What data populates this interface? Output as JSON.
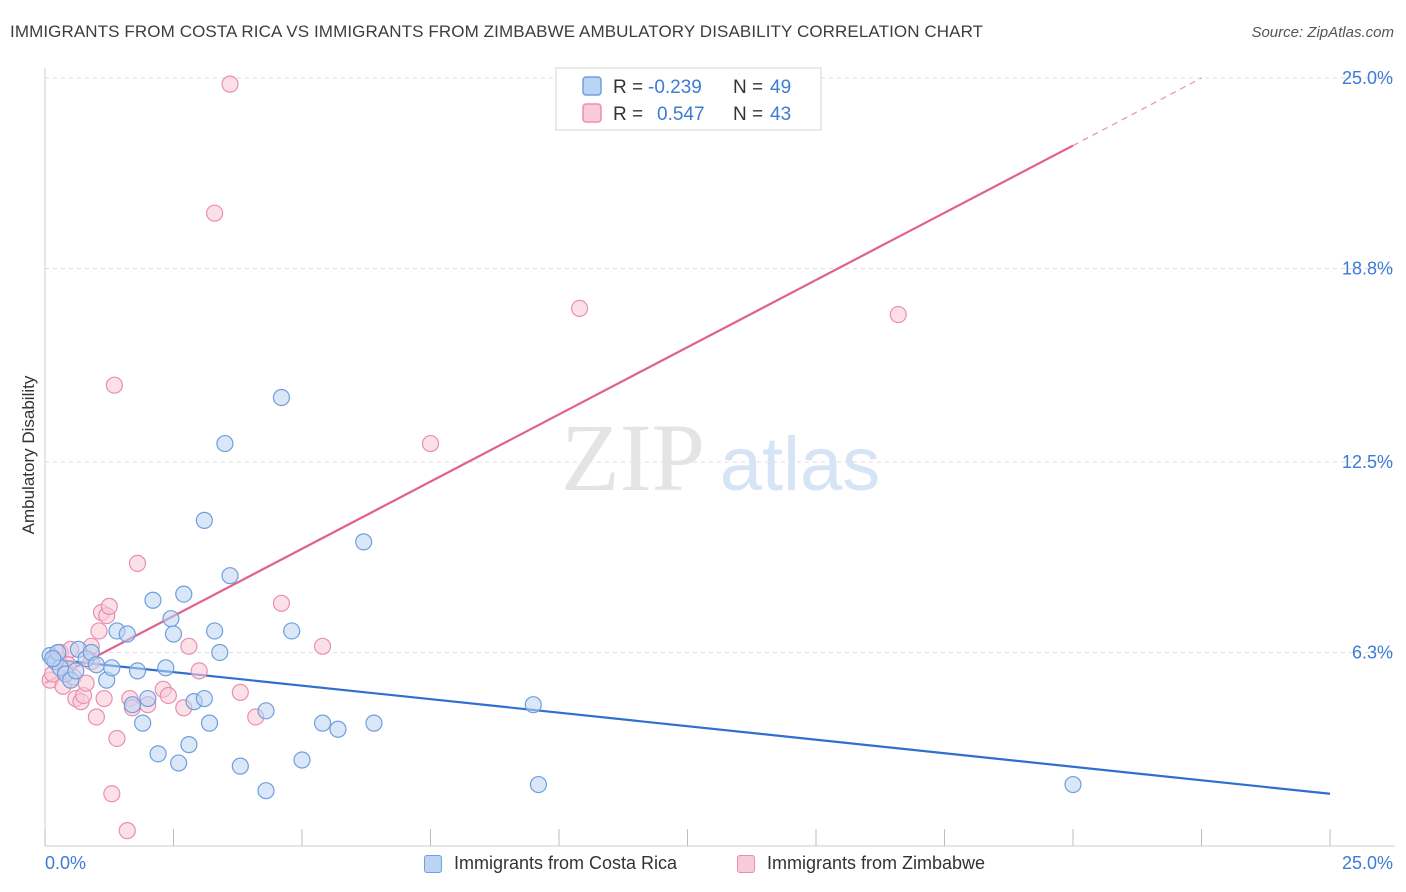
{
  "header": {
    "title": "IMMIGRANTS FROM COSTA RICA VS IMMIGRANTS FROM ZIMBABWE AMBULATORY DISABILITY CORRELATION CHART",
    "source": "Source: ZipAtlas.com"
  },
  "watermark": {
    "zip": "ZIP",
    "atlas": "atlas"
  },
  "colors": {
    "blue_fill": "#bcd4f4",
    "blue_stroke": "#6f9fdc",
    "blue_line": "#2f6fd0",
    "pink_fill": "#f9cbd9",
    "pink_stroke": "#ea8fad",
    "pink_line": "#e0618c",
    "axis_text": "#3d7bd4",
    "grid": "#dddddd"
  },
  "legend_stats": [
    {
      "r_label": "R =",
      "r_value": "-0.239",
      "n_label": "N =",
      "n_value": "49"
    },
    {
      "r_label": "R =",
      "r_value": "0.547",
      "n_label": "N =",
      "n_value": "43"
    }
  ],
  "chart_data": {
    "type": "scatter",
    "title": "IMMIGRANTS FROM COSTA RICA VS IMMIGRANTS FROM ZIMBABWE AMBULATORY DISABILITY CORRELATION CHART",
    "xlabel": "",
    "ylabel": "Ambulatory Disability",
    "xlim": [
      0,
      25
    ],
    "ylim": [
      0,
      25
    ],
    "x_tick_labels": [
      "0.0%",
      "25.0%"
    ],
    "y_ticks": [
      6.3,
      12.5,
      18.8,
      25.0
    ],
    "y_tick_labels": [
      "6.3%",
      "12.5%",
      "18.8%",
      "25.0%"
    ],
    "grid": true,
    "legend_position": "top-center and bottom",
    "series": [
      {
        "name": "Immigrants from Costa Rica",
        "color": "#6f9fdc",
        "trend": {
          "x": [
            0,
            25
          ],
          "y": [
            6.1,
            1.7
          ]
        },
        "points": [
          [
            0.1,
            6.2
          ],
          [
            0.2,
            6.0
          ],
          [
            0.25,
            6.3
          ],
          [
            0.3,
            5.8
          ],
          [
            0.4,
            5.6
          ],
          [
            0.5,
            5.4
          ],
          [
            0.6,
            5.7
          ],
          [
            0.65,
            6.4
          ],
          [
            0.8,
            6.1
          ],
          [
            0.9,
            6.3
          ],
          [
            1.0,
            5.9
          ],
          [
            1.2,
            5.4
          ],
          [
            1.3,
            5.8
          ],
          [
            1.4,
            7.0
          ],
          [
            1.6,
            6.9
          ],
          [
            1.7,
            4.6
          ],
          [
            1.8,
            5.7
          ],
          [
            1.9,
            4.0
          ],
          [
            2.0,
            4.8
          ],
          [
            2.1,
            8.0
          ],
          [
            2.2,
            3.0
          ],
          [
            2.35,
            5.8
          ],
          [
            2.45,
            7.4
          ],
          [
            2.5,
            6.9
          ],
          [
            2.6,
            2.7
          ],
          [
            2.7,
            8.2
          ],
          [
            2.8,
            3.3
          ],
          [
            2.9,
            4.7
          ],
          [
            3.1,
            4.8
          ],
          [
            3.1,
            10.6
          ],
          [
            3.2,
            4.0
          ],
          [
            3.3,
            7.0
          ],
          [
            3.4,
            6.3
          ],
          [
            3.5,
            13.1
          ],
          [
            3.6,
            8.8
          ],
          [
            3.8,
            2.6
          ],
          [
            4.3,
            4.4
          ],
          [
            4.3,
            1.8
          ],
          [
            4.6,
            14.6
          ],
          [
            4.8,
            7.0
          ],
          [
            5.0,
            2.8
          ],
          [
            5.4,
            4.0
          ],
          [
            5.7,
            3.8
          ],
          [
            6.2,
            9.9
          ],
          [
            6.4,
            4.0
          ],
          [
            9.5,
            4.6
          ],
          [
            9.6,
            2.0
          ],
          [
            20.0,
            2.0
          ],
          [
            0.15,
            6.1
          ]
        ]
      },
      {
        "name": "Immigrants from Zimbabwe",
        "color": "#ea8fad",
        "trend": {
          "x": [
            0,
            20
          ],
          "y": [
            5.3,
            22.8
          ]
        },
        "trend_dashed": {
          "x": [
            20,
            22.5
          ],
          "y": [
            22.8,
            25.0
          ]
        },
        "points": [
          [
            0.1,
            5.4
          ],
          [
            0.15,
            5.6
          ],
          [
            0.2,
            6.1
          ],
          [
            0.3,
            6.3
          ],
          [
            0.35,
            5.2
          ],
          [
            0.4,
            5.7
          ],
          [
            0.5,
            6.4
          ],
          [
            0.55,
            5.5
          ],
          [
            0.6,
            4.8
          ],
          [
            0.7,
            4.7
          ],
          [
            0.75,
            4.9
          ],
          [
            0.8,
            5.3
          ],
          [
            0.9,
            6.5
          ],
          [
            0.9,
            6.0
          ],
          [
            1.0,
            4.2
          ],
          [
            1.05,
            7.0
          ],
          [
            1.1,
            7.6
          ],
          [
            1.15,
            4.8
          ],
          [
            1.2,
            7.5
          ],
          [
            1.25,
            7.8
          ],
          [
            1.3,
            1.7
          ],
          [
            1.35,
            15.0
          ],
          [
            1.4,
            3.5
          ],
          [
            1.6,
            0.5
          ],
          [
            1.65,
            4.8
          ],
          [
            1.7,
            4.5
          ],
          [
            1.8,
            9.2
          ],
          [
            2.0,
            4.6
          ],
          [
            2.3,
            5.1
          ],
          [
            2.4,
            4.9
          ],
          [
            2.7,
            4.5
          ],
          [
            2.8,
            6.5
          ],
          [
            3.0,
            5.7
          ],
          [
            3.3,
            20.6
          ],
          [
            3.6,
            24.8
          ],
          [
            3.8,
            5.0
          ],
          [
            4.1,
            4.2
          ],
          [
            4.6,
            7.9
          ],
          [
            5.4,
            6.5
          ],
          [
            7.5,
            13.1
          ],
          [
            10.4,
            17.5
          ],
          [
            16.6,
            17.3
          ],
          [
            0.45,
            5.9
          ]
        ]
      }
    ]
  }
}
